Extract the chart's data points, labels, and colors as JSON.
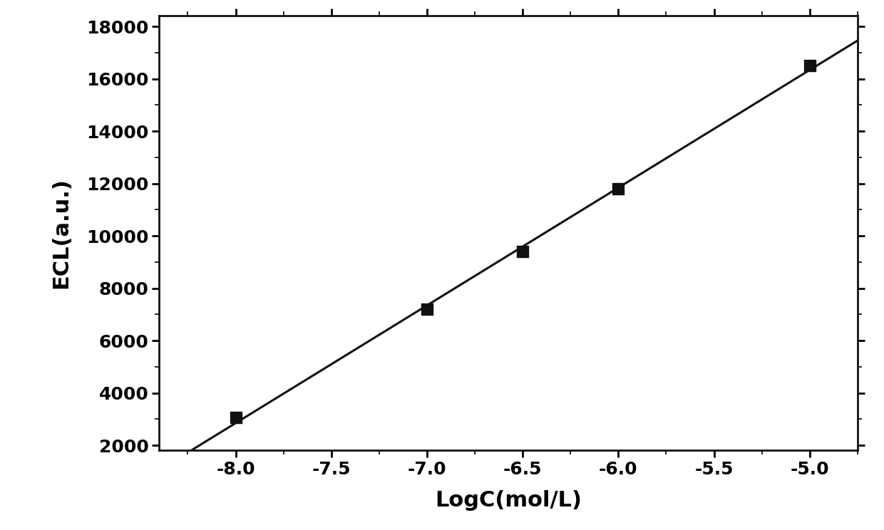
{
  "x_data": [
    -8.0,
    -7.0,
    -6.5,
    -6.0,
    -5.0
  ],
  "y_data": [
    3050,
    7200,
    9400,
    11800,
    16500
  ],
  "xlabel": "LogC(mol/L)",
  "ylabel": "ECL(a.u.)",
  "xlim": [
    -8.4,
    -4.75
  ],
  "ylim": [
    1800,
    18400
  ],
  "xticks": [
    -8.0,
    -7.5,
    -7.0,
    -6.5,
    -6.0,
    -5.5,
    -5.0
  ],
  "yticks": [
    2000,
    4000,
    6000,
    8000,
    10000,
    12000,
    14000,
    16000,
    18000
  ],
  "marker_color": "#111111",
  "line_color": "#111111",
  "background_color": "#ffffff",
  "xlabel_fontsize": 22,
  "ylabel_fontsize": 22,
  "tick_fontsize": 18,
  "marker_size": 130,
  "line_width": 2.2,
  "line_x_start": -8.42,
  "line_x_end": -4.72
}
